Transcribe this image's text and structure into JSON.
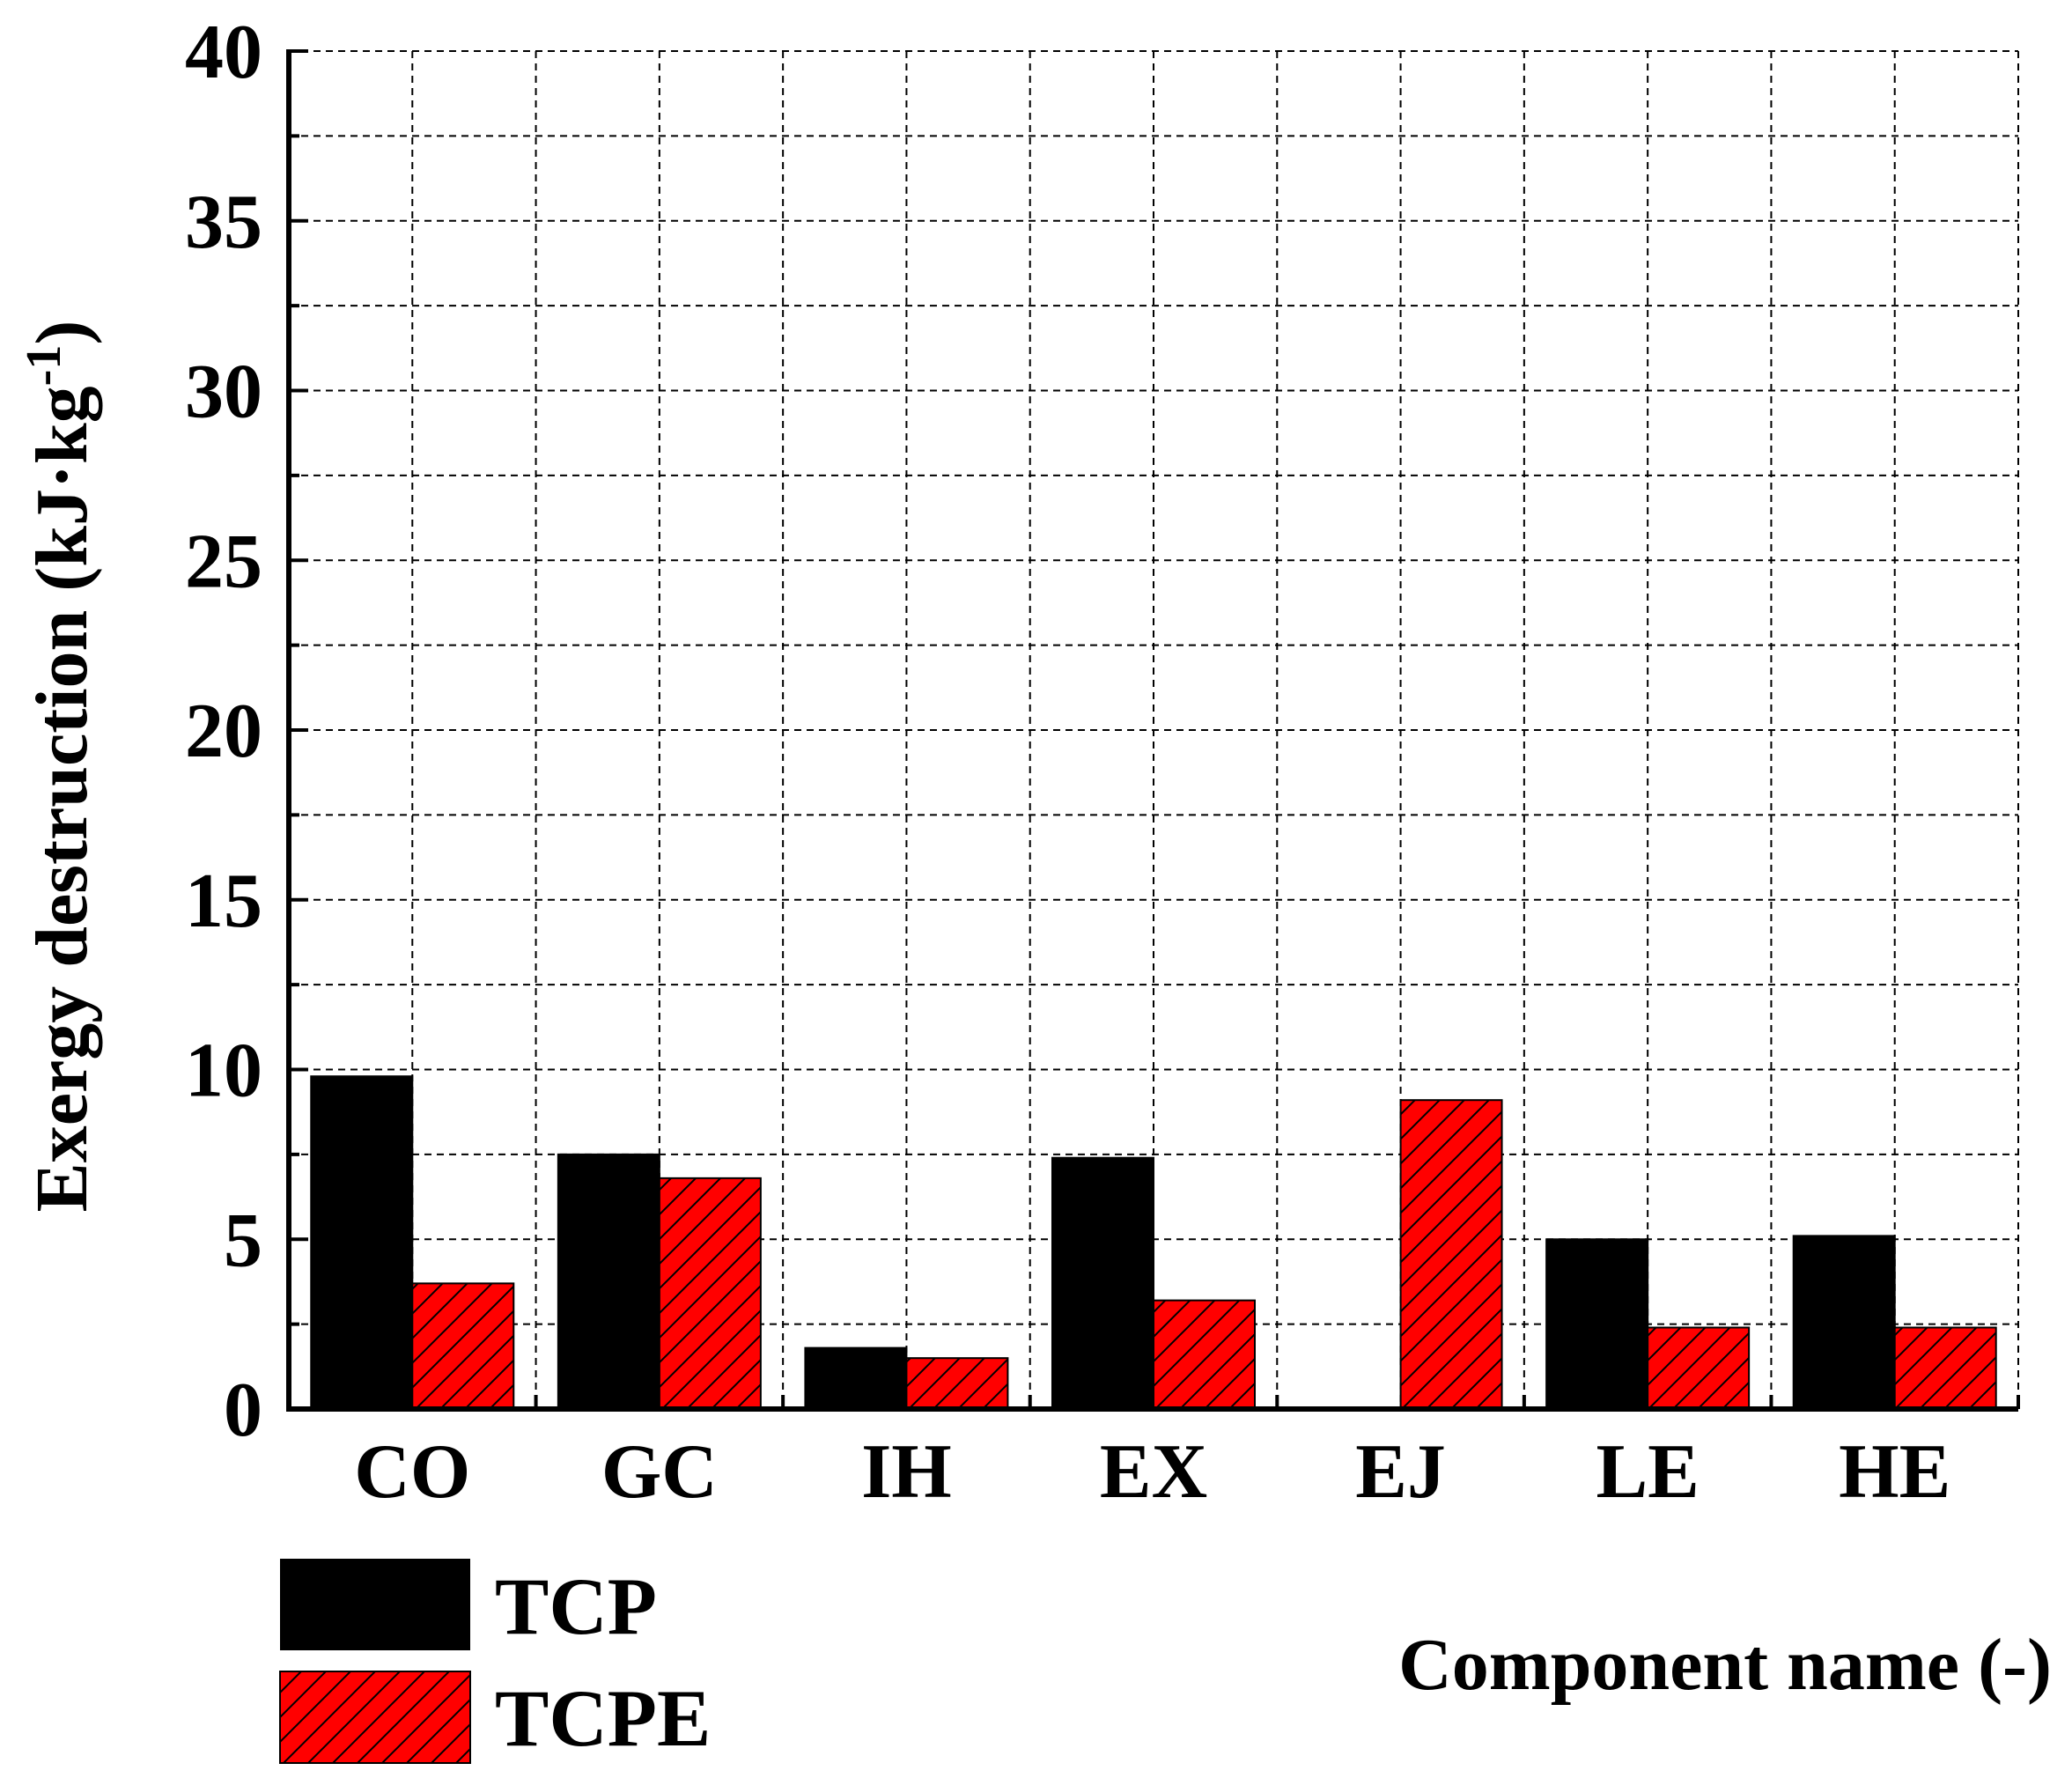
{
  "chart_data": {
    "type": "bar",
    "categories": [
      "CO",
      "GC",
      "IH",
      "EX",
      "EJ",
      "LE",
      "HE"
    ],
    "series": [
      {
        "name": "TCP",
        "values": [
          9.8,
          7.5,
          1.8,
          7.4,
          0.0,
          5.0,
          5.1
        ],
        "color": "#000000",
        "pattern": "solid"
      },
      {
        "name": "TCPE",
        "values": [
          3.7,
          6.8,
          1.5,
          3.2,
          9.1,
          2.4,
          2.4
        ],
        "color": "#ff0000",
        "pattern": "hatched"
      }
    ],
    "xlabel": "Component name (-)",
    "ylabel": "Exergy destruction (kJ·kg",
    "ylabel_superscript": "-1",
    "ylabel_close": ")",
    "ylim": [
      0,
      40
    ],
    "yticks": [
      0,
      5,
      10,
      15,
      20,
      25,
      30,
      35,
      40
    ],
    "grid": true,
    "legend_position": "bottom-left"
  }
}
